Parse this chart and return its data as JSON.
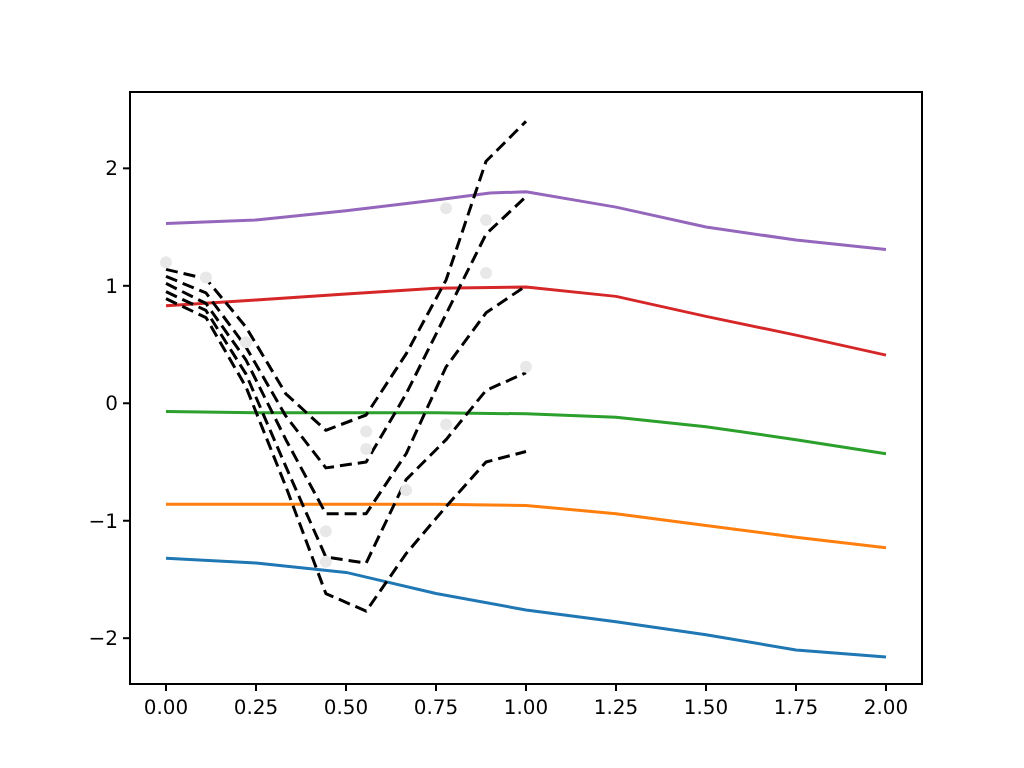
{
  "chart_data": {
    "type": "line",
    "xlim": [
      -0.1,
      2.1
    ],
    "ylim": [
      -2.39,
      2.65
    ],
    "xticks": [
      {
        "value": 0,
        "label": "0.00"
      },
      {
        "value": 0.25,
        "label": "0.25"
      },
      {
        "value": 0.5,
        "label": "0.50"
      },
      {
        "value": 0.75,
        "label": "0.75"
      },
      {
        "value": 1,
        "label": "1.00"
      },
      {
        "value": 1.25,
        "label": "1.25"
      },
      {
        "value": 1.5,
        "label": "1.50"
      },
      {
        "value": 1.75,
        "label": "1.75"
      },
      {
        "value": 2,
        "label": "2.00"
      }
    ],
    "yticks": [
      -2,
      -1,
      0,
      1,
      2
    ],
    "series": [
      {
        "color": "#1f77b4",
        "line_style": "solid",
        "x": [
          0,
          0.25,
          0.5,
          0.75,
          1,
          1.25,
          1.5,
          1.75,
          2
        ],
        "values": [
          -1.32,
          -1.36,
          -1.44,
          -1.62,
          -1.76,
          -1.86,
          -1.97,
          -2.1,
          -2.16
        ]
      },
      {
        "color": "#ff7f0e",
        "line_style": "solid",
        "x": [
          0,
          0.25,
          0.5,
          0.75,
          1,
          1.25,
          1.5,
          1.75,
          2
        ],
        "values": [
          -0.86,
          -0.86,
          -0.86,
          -0.86,
          -0.87,
          -0.94,
          -1.04,
          -1.14,
          -1.23
        ]
      },
      {
        "color": "#2ca02c",
        "line_style": "solid",
        "x": [
          0,
          0.25,
          0.5,
          0.75,
          1,
          1.25,
          1.5,
          1.75,
          2
        ],
        "values": [
          -0.07,
          -0.08,
          -0.08,
          -0.08,
          -0.09,
          -0.12,
          -0.2,
          -0.31,
          -0.43
        ]
      },
      {
        "color": "#d62728",
        "line_style": "solid",
        "x": [
          0,
          0.25,
          0.5,
          0.75,
          1,
          1.25,
          1.5,
          1.75,
          2
        ],
        "values": [
          0.83,
          0.88,
          0.93,
          0.98,
          0.99,
          0.91,
          0.74,
          0.58,
          0.41
        ]
      },
      {
        "color": "#9467bd",
        "line_style": "solid",
        "x": [
          0,
          0.25,
          0.5,
          0.75,
          0.9,
          1,
          1.25,
          1.5,
          1.75,
          2
        ],
        "values": [
          1.53,
          1.56,
          1.64,
          1.73,
          1.79,
          1.8,
          1.67,
          1.5,
          1.39,
          1.31
        ]
      },
      {
        "color": "#000000",
        "line_style": "dashed",
        "x": [
          0,
          0.111,
          0.222,
          0.333,
          0.444,
          0.556,
          0.667,
          0.778,
          0.889,
          1
        ],
        "values": [
          1.14,
          1.06,
          0.65,
          0.08,
          -0.23,
          -0.1,
          0.42,
          1.05,
          2.06,
          2.4
        ]
      },
      {
        "color": "#000000",
        "line_style": "dashed",
        "x": [
          0,
          0.111,
          0.222,
          0.333,
          0.444,
          0.556,
          0.667,
          0.778,
          0.889,
          1
        ],
        "values": [
          1.08,
          0.94,
          0.48,
          -0.11,
          -0.55,
          -0.5,
          0.08,
          0.76,
          1.44,
          1.76
        ]
      },
      {
        "color": "#000000",
        "line_style": "dashed",
        "x": [
          0,
          0.111,
          0.222,
          0.333,
          0.444,
          0.556,
          0.667,
          0.778,
          0.889,
          1
        ],
        "values": [
          1.02,
          0.85,
          0.37,
          -0.31,
          -0.94,
          -0.94,
          -0.43,
          0.31,
          0.77,
          1.0
        ]
      },
      {
        "color": "#000000",
        "line_style": "dashed",
        "x": [
          0,
          0.111,
          0.222,
          0.333,
          0.444,
          0.556,
          0.667,
          0.778,
          0.889,
          1
        ],
        "values": [
          0.95,
          0.79,
          0.25,
          -0.54,
          -1.31,
          -1.36,
          -0.65,
          -0.31,
          0.11,
          0.26
        ]
      },
      {
        "color": "#000000",
        "line_style": "dashed",
        "x": [
          0,
          0.111,
          0.222,
          0.333,
          0.444,
          0.556,
          0.667,
          0.778,
          0.889,
          1
        ],
        "values": [
          0.89,
          0.73,
          0.14,
          -0.71,
          -1.62,
          -1.77,
          -1.28,
          -0.88,
          -0.5,
          -0.41
        ]
      },
      {
        "type": "scatter",
        "color": "#e8e8e8",
        "marker": "circle",
        "x": [
          0,
          0.111,
          0.222,
          0.444,
          0.444,
          0.556,
          0.556,
          0.667,
          0.778,
          0.778,
          0.889,
          0.889,
          1
        ],
        "values": [
          1.2,
          1.07,
          0.52,
          -1.09,
          -1.35,
          -0.24,
          -0.39,
          -0.74,
          1.66,
          -0.18,
          1.56,
          1.11,
          0.31
        ]
      }
    ]
  }
}
